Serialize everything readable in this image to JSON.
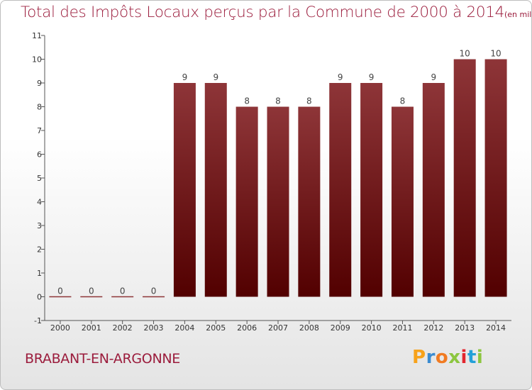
{
  "title": "Total des Impôts Locaux perçus par la Commune de 2000 à 2014",
  "unit_note": "(en milliers d'€)",
  "commune": "BRABANT-EN-ARGONNE",
  "brand": {
    "letters": [
      "P",
      "r",
      "o",
      "x",
      "i",
      "t",
      "i"
    ],
    "colors": [
      "#f7a21b",
      "#3a8bd1",
      "#f17b22",
      "#8cc63f",
      "#e2262f",
      "#23a0d8",
      "#8cc63f"
    ]
  },
  "colors": {
    "bar_top": "#8e3538",
    "bar_bottom": "#520000",
    "axis": "#555555",
    "title": "#9b1c3c"
  },
  "chart_data": {
    "type": "bar",
    "title": "Total des Impôts Locaux perçus par la Commune de 2000 à 2014",
    "xlabel": "",
    "ylabel": "",
    "categories": [
      "2000",
      "2001",
      "2002",
      "2003",
      "2004",
      "2005",
      "2006",
      "2007",
      "2008",
      "2009",
      "2010",
      "2011",
      "2012",
      "2013",
      "2014"
    ],
    "values": [
      0,
      0,
      0,
      0,
      9,
      9,
      8,
      8,
      8,
      9,
      9,
      8,
      9,
      10,
      10
    ],
    "data_labels": [
      "0",
      "0",
      "0",
      "0",
      "9",
      "9",
      "8",
      "8",
      "8",
      "9",
      "9",
      "8",
      "9",
      "10",
      "10"
    ],
    "ylim": [
      -1,
      11
    ],
    "y_ticks": [
      -1,
      0,
      1,
      2,
      3,
      4,
      5,
      6,
      7,
      8,
      9,
      10,
      11
    ],
    "y_tick_labels": [
      "-1",
      "0",
      "1",
      "2",
      "3",
      "4",
      "5",
      "6",
      "7",
      "8",
      "9",
      "10",
      "11"
    ],
    "grid": false,
    "legend": "none"
  }
}
